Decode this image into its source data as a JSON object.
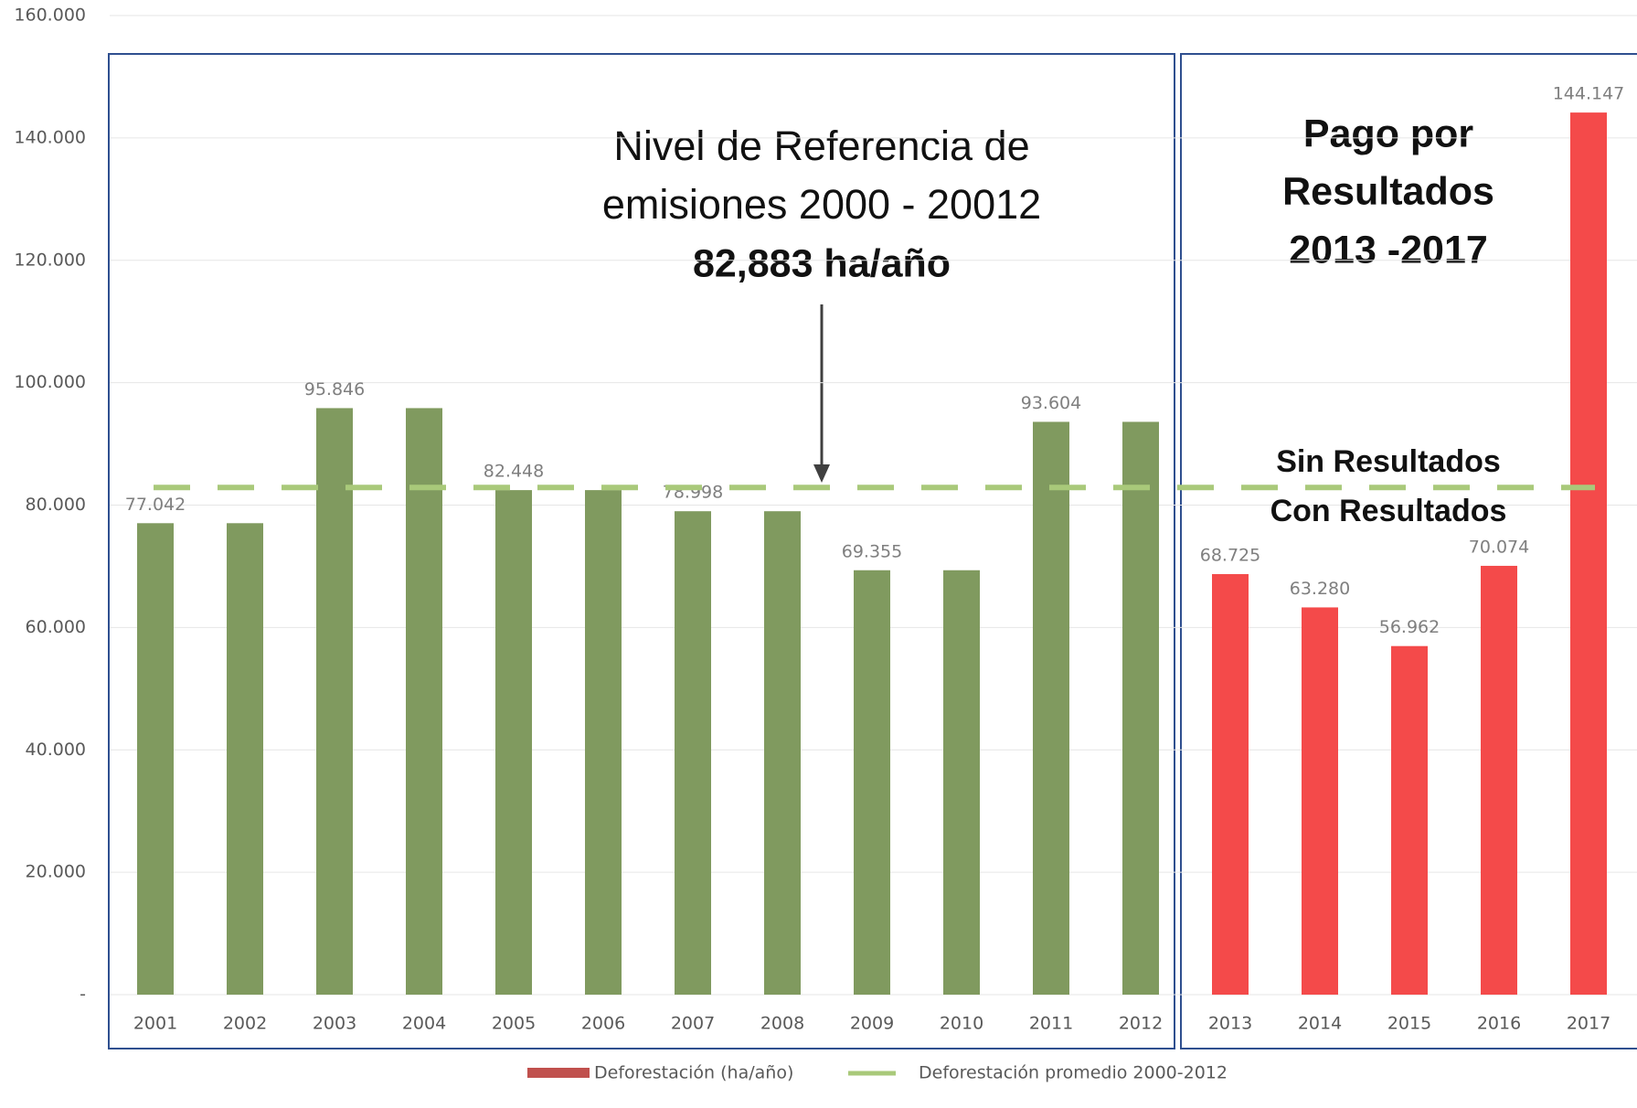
{
  "chart_data": {
    "type": "bar",
    "categories": [
      "2001",
      "2002",
      "2003",
      "2004",
      "2005",
      "2006",
      "2007",
      "2008",
      "2009",
      "2010",
      "2011",
      "2012",
      "2013",
      "2014",
      "2015",
      "2016",
      "2017"
    ],
    "values": [
      77042,
      77042,
      95846,
      95846,
      82448,
      82448,
      78998,
      78998,
      69355,
      69355,
      93604,
      93604,
      68725,
      63280,
      56962,
      70074,
      144147
    ],
    "value_labels": [
      "77.042",
      null,
      "95.846",
      null,
      "82.448",
      null,
      "78.998",
      null,
      "69.355",
      null,
      "93.604",
      null,
      "68.725",
      "63.280",
      "56.962",
      "70.074",
      "144.147"
    ],
    "colors": [
      "#809a5f",
      "#809a5f",
      "#809a5f",
      "#809a5f",
      "#809a5f",
      "#809a5f",
      "#809a5f",
      "#809a5f",
      "#809a5f",
      "#809a5f",
      "#809a5f",
      "#809a5f",
      "#f44a4a",
      "#f44a4a",
      "#f44a4a",
      "#f44a4a",
      "#f44a4a"
    ],
    "reference_line": {
      "value": 82883,
      "color": "#a9c97a"
    },
    "ylim": [
      0,
      160000
    ],
    "yticks": [
      {
        "value": 0,
        "label": "-"
      },
      {
        "value": 20000,
        "label": "20.000"
      },
      {
        "value": 40000,
        "label": "40.000"
      },
      {
        "value": 60000,
        "label": "60.000"
      },
      {
        "value": 80000,
        "label": "80.000"
      },
      {
        "value": 100000,
        "label": "100.000"
      },
      {
        "value": 120000,
        "label": "120.000"
      },
      {
        "value": 140000,
        "label": "140.000"
      },
      {
        "value": 160000,
        "label": "160.000"
      }
    ],
    "grid": true,
    "legend": [
      {
        "name": "Deforestación (ha/año)",
        "color": "#c0504d"
      },
      {
        "name": "Deforestación promedio 2000-2012",
        "color": "#a9c97a"
      }
    ],
    "annotations": {
      "reference": [
        "Nivel de Referencia de",
        "emisiones 2000 - 20012",
        "82,883 ha/año"
      ],
      "payment": [
        "Pago por",
        "Resultados",
        "2013 -2017"
      ],
      "without": "Sin Resultados",
      "with": "Con Resultados"
    }
  }
}
